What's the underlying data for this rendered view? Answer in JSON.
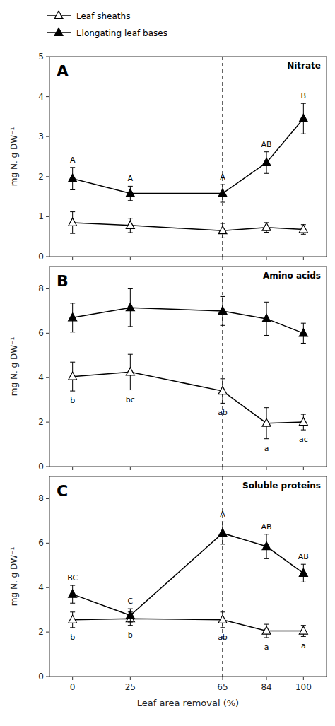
{
  "chart_data": [
    {
      "type": "line",
      "title": "Nitrate",
      "panel_label": "A",
      "ylabel": "mg N. g DW⁻¹",
      "x": [
        0,
        25,
        65,
        84,
        100
      ],
      "xlim": [
        -10,
        110
      ],
      "xticks": [
        0,
        25,
        65,
        84,
        100
      ],
      "ylim": [
        0,
        5
      ],
      "yticks": [
        0,
        1,
        2,
        3,
        4,
        5
      ],
      "vline": 65,
      "tick_labels": "y",
      "legend": "top",
      "series": [
        {
          "name": "Leaf sheaths",
          "color": "#000000",
          "marker": "triangle-open",
          "line_style": "solid",
          "values": [
            0.85,
            0.78,
            0.65,
            0.73,
            0.68
          ],
          "errors": [
            0.27,
            0.18,
            0.18,
            0.12,
            0.12
          ]
        },
        {
          "name": "Elongating leaf bases",
          "color": "#000000",
          "marker": "triangle",
          "line_style": "solid",
          "values": [
            1.95,
            1.58,
            1.58,
            2.35,
            3.45
          ],
          "errors": [
            0.28,
            0.18,
            0.22,
            0.27,
            0.38
          ],
          "point_labels": [
            "A",
            "A",
            "A",
            "AB",
            "B"
          ]
        }
      ]
    },
    {
      "type": "line",
      "title": "Amino acids",
      "panel_label": "B",
      "ylabel": "mg N. g DW⁻¹",
      "x": [
        0,
        25,
        65,
        84,
        100
      ],
      "xlim": [
        -10,
        110
      ],
      "xticks": [
        0,
        25,
        65,
        84,
        100
      ],
      "ylim": [
        0,
        9
      ],
      "yticks": [
        0,
        2,
        4,
        6,
        8
      ],
      "vline": 65,
      "tick_labels": "y",
      "series": [
        {
          "color": "#000000",
          "marker": "triangle-open",
          "line_style": "solid",
          "values": [
            4.05,
            4.25,
            3.4,
            1.95,
            2.0
          ],
          "errors": [
            0.65,
            0.8,
            0.55,
            0.7,
            0.35
          ],
          "point_labels": [
            "b",
            "bc",
            "ab",
            "a",
            "ac"
          ]
        },
        {
          "color": "#000000",
          "marker": "triangle",
          "line_style": "solid",
          "values": [
            6.7,
            7.15,
            7.0,
            6.65,
            6.0
          ],
          "errors": [
            0.65,
            0.85,
            0.65,
            0.75,
            0.45
          ]
        }
      ]
    },
    {
      "type": "line",
      "title": "Soluble proteins",
      "panel_label": "C",
      "ylabel": "mg N. g DW⁻¹",
      "xlabel": "Leaf area removal (%)",
      "x": [
        0,
        25,
        65,
        84,
        100
      ],
      "xlim": [
        -10,
        110
      ],
      "xticks": [
        0,
        25,
        65,
        84,
        100
      ],
      "ylim": [
        0,
        9
      ],
      "yticks": [
        0,
        2,
        4,
        6,
        8
      ],
      "vline": 65,
      "series": [
        {
          "color": "#000000",
          "marker": "triangle-open",
          "line_style": "solid",
          "values": [
            2.55,
            2.6,
            2.55,
            2.05,
            2.05
          ],
          "errors": [
            0.35,
            0.3,
            0.35,
            0.3,
            0.25
          ],
          "point_labels": [
            "b",
            "b",
            "ab",
            "a",
            "a"
          ]
        },
        {
          "color": "#000000",
          "marker": "triangle",
          "line_style": "solid",
          "values": [
            3.7,
            2.75,
            6.45,
            5.85,
            4.65
          ],
          "errors": [
            0.4,
            0.3,
            0.5,
            0.55,
            0.4
          ],
          "point_labels": [
            "BC",
            "C",
            "A",
            "AB",
            "AB"
          ]
        }
      ]
    }
  ]
}
